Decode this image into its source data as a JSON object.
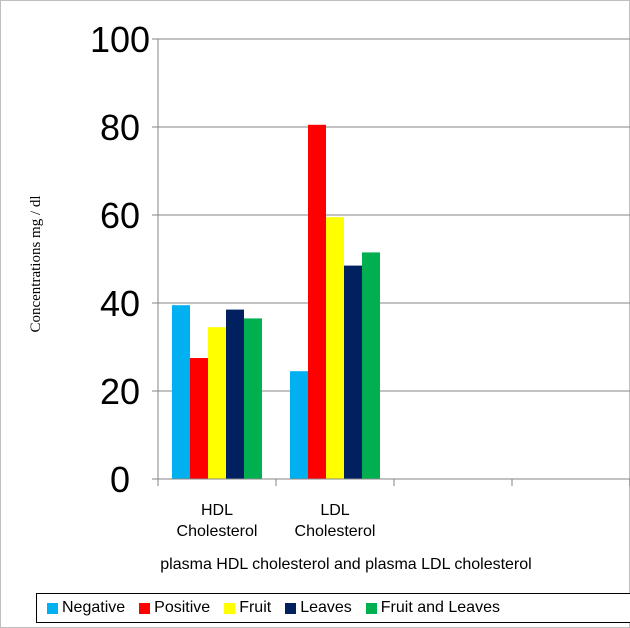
{
  "chart_data": {
    "type": "bar",
    "title": "",
    "xlabel": "plasma  HDL cholesterol and plasma  LDL cholesterol",
    "ylabel": "Concentrations   mg / dl",
    "ylim": [
      0,
      100
    ],
    "yticks": [
      "0",
      "20",
      "40",
      "60",
      "80",
      "100"
    ],
    "categories": [
      [
        "HDL",
        "Cholesterol"
      ],
      [
        "LDL",
        "Cholesterol"
      ],
      [
        "",
        ""
      ],
      [
        "",
        ""
      ]
    ],
    "series": [
      {
        "name": "Negative",
        "color": "#00b0f0",
        "values": [
          39.5,
          24.5,
          null,
          null
        ]
      },
      {
        "name": "Positive",
        "color": "#ff0000",
        "values": [
          27.5,
          80.5,
          null,
          null
        ]
      },
      {
        "name": "Fruit",
        "color": "#ffff00",
        "values": [
          34.5,
          59.5,
          null,
          null
        ]
      },
      {
        "name": "Leaves",
        "color": "#002060",
        "values": [
          38.5,
          48.5,
          null,
          null
        ]
      },
      {
        "name": "Fruit and Leaves",
        "color": "#00b050",
        "values": [
          36.5,
          51.5,
          null,
          null
        ]
      }
    ],
    "grid": true,
    "legend_position": "bottom"
  }
}
